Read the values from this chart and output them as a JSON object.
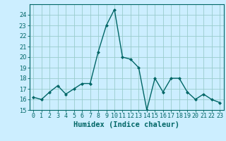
{
  "x": [
    0,
    1,
    2,
    3,
    4,
    5,
    6,
    7,
    8,
    9,
    10,
    11,
    12,
    13,
    14,
    15,
    16,
    17,
    18,
    19,
    20,
    21,
    22,
    23
  ],
  "y": [
    16.2,
    16.0,
    16.7,
    17.3,
    16.5,
    17.0,
    17.5,
    17.5,
    20.5,
    23.0,
    24.5,
    20.0,
    19.8,
    19.0,
    15.0,
    18.0,
    16.7,
    18.0,
    18.0,
    16.7,
    16.0,
    16.5,
    16.0,
    15.7
  ],
  "line_color": "#006666",
  "marker": "D",
  "marker_size": 2.0,
  "bg_color": "#cceeff",
  "grid_color": "#99cccc",
  "xlabel": "Humidex (Indice chaleur)",
  "xlabel_fontsize": 7.5,
  "ylim": [
    15,
    25
  ],
  "xlim": [
    -0.5,
    23.5
  ],
  "yticks": [
    15,
    16,
    17,
    18,
    19,
    20,
    21,
    22,
    23,
    24
  ],
  "xtick_labels": [
    "0",
    "1",
    "2",
    "3",
    "4",
    "5",
    "6",
    "7",
    "8",
    "9",
    "10",
    "11",
    "12",
    "13",
    "14",
    "15",
    "16",
    "17",
    "18",
    "19",
    "20",
    "21",
    "22",
    "23"
  ],
  "tick_fontsize": 6.0,
  "linewidth": 1.0
}
